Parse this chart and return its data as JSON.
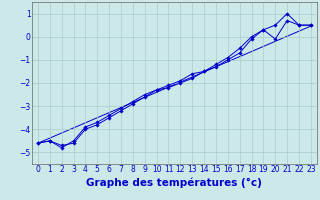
{
  "xlabel": "Graphe des températures (°c)",
  "x": [
    0,
    1,
    2,
    3,
    4,
    5,
    6,
    7,
    8,
    9,
    10,
    11,
    12,
    13,
    14,
    15,
    16,
    17,
    18,
    19,
    20,
    21,
    22,
    23
  ],
  "line1": [
    -4.6,
    -4.5,
    -4.7,
    -4.6,
    -4.0,
    -3.8,
    -3.5,
    -3.2,
    -2.9,
    -2.6,
    -2.3,
    -2.2,
    -2.0,
    -1.8,
    -1.5,
    -1.3,
    -1.0,
    -0.7,
    -0.1,
    0.3,
    0.5,
    1.0,
    0.5,
    0.5
  ],
  "line2": [
    -4.6,
    -4.5,
    -4.8,
    -4.5,
    -3.9,
    -3.7,
    -3.4,
    -3.1,
    -2.8,
    -2.5,
    -2.3,
    -2.1,
    -1.9,
    -1.6,
    -1.5,
    -1.2,
    -0.9,
    -0.5,
    0.0,
    0.3,
    -0.1,
    0.7,
    0.5,
    0.5
  ],
  "line_ref": [
    -4.6,
    -4.38,
    -4.16,
    -3.94,
    -3.72,
    -3.5,
    -3.28,
    -3.06,
    -2.84,
    -2.62,
    -2.4,
    -2.18,
    -1.96,
    -1.74,
    -1.52,
    -1.3,
    -1.08,
    -0.86,
    -0.64,
    -0.42,
    -0.2,
    0.02,
    0.24,
    0.46
  ],
  "line_color": "#0000cc",
  "background_color": "#cce8e8",
  "grid_color": "#aacccc",
  "ylim": [
    -5.5,
    1.5
  ],
  "yticks": [
    -5,
    -4,
    -3,
    -2,
    -1,
    0,
    1
  ],
  "xtick_labels": [
    "0",
    "1",
    "2",
    "3",
    "4",
    "5",
    "6",
    "7",
    "8",
    "9",
    "10",
    "11",
    "12",
    "13",
    "14",
    "15",
    "16",
    "17",
    "18",
    "19",
    "20",
    "21",
    "22",
    "23"
  ],
  "marker": "D",
  "markersize": 1.8,
  "linewidth": 0.7,
  "tick_fontsize": 5.5,
  "xlabel_fontsize": 7.5
}
